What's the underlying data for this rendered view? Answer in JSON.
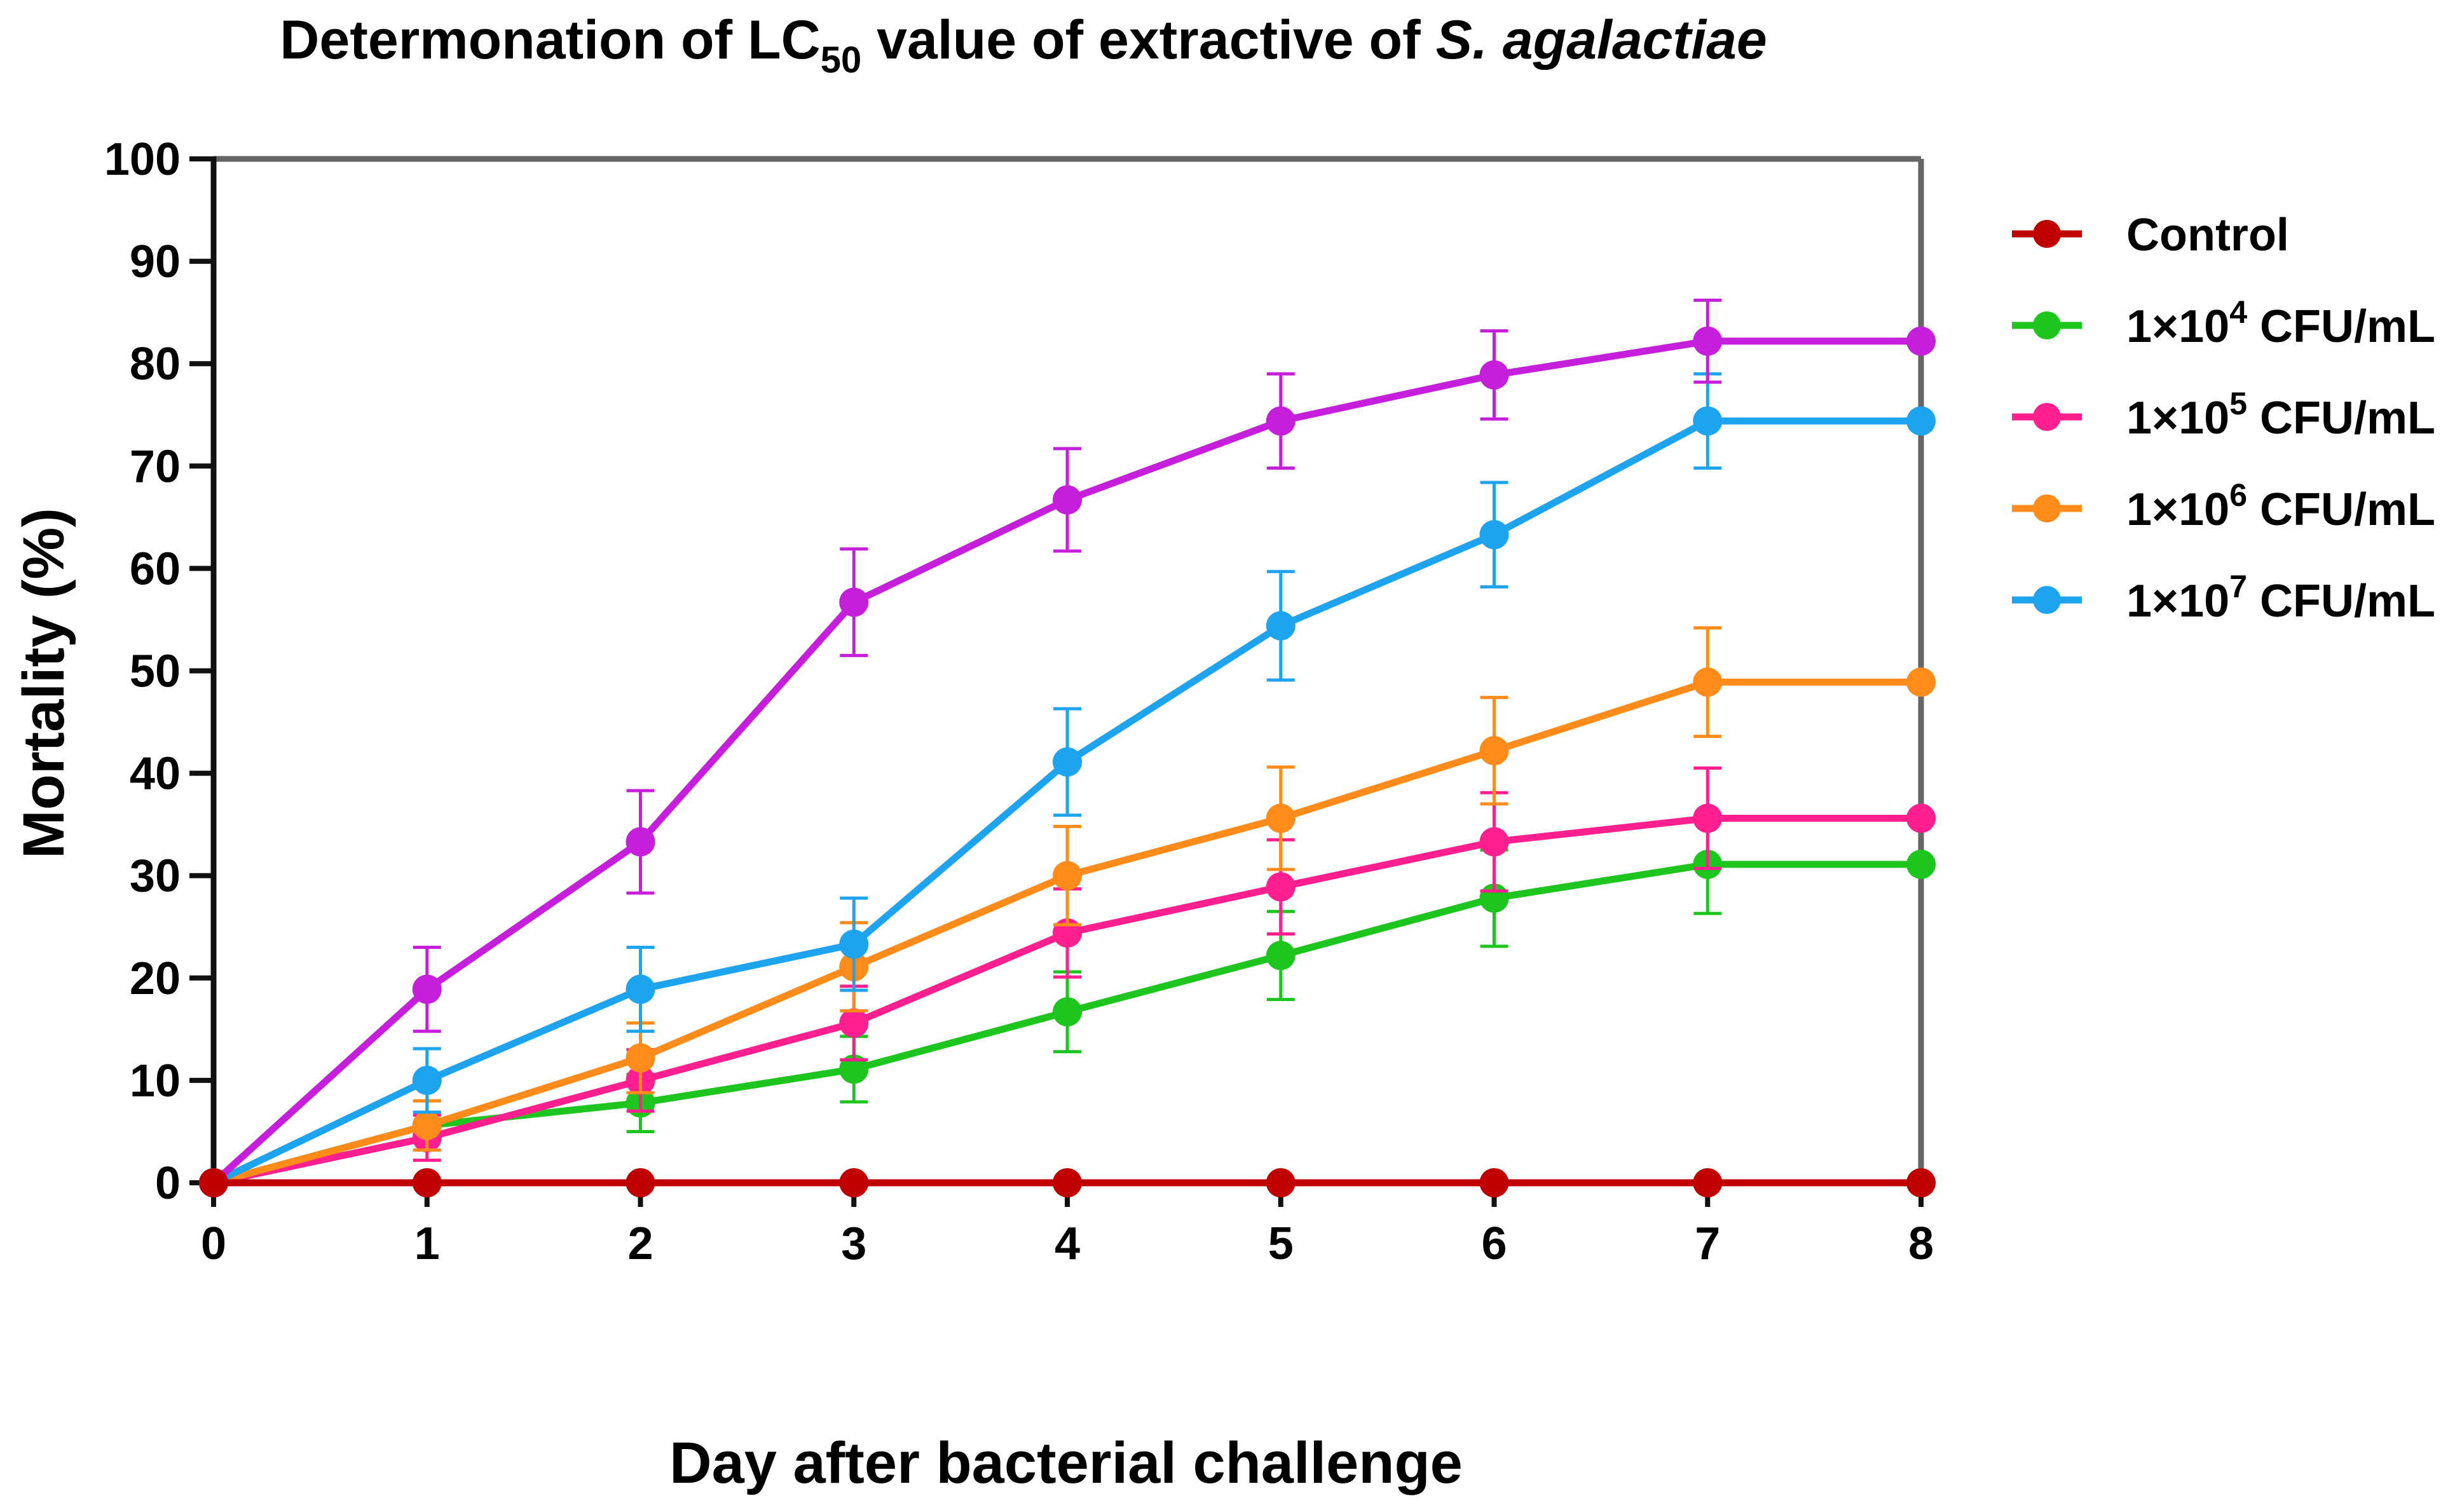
{
  "chart_data": {
    "type": "line",
    "title": {
      "prefix": "Determonation of LC",
      "subscript": "50",
      "middle": " value of extractive of ",
      "italic": "S. agalactiae"
    },
    "xlabel": "Day after bacterial challenge",
    "ylabel": "Mortality (%)",
    "x": [
      0,
      1,
      2,
      3,
      4,
      5,
      6,
      7,
      8
    ],
    "xlim": [
      0,
      8
    ],
    "ylim": [
      0,
      100
    ],
    "xticks": [
      "0",
      "1",
      "2",
      "3",
      "4",
      "5",
      "6",
      "7",
      "8"
    ],
    "yticks": [
      "0",
      "10",
      "20",
      "30",
      "40",
      "50",
      "60",
      "70",
      "80",
      "90",
      "100"
    ],
    "legend_position": "right",
    "series": [
      {
        "name": "Control",
        "legend": {
          "base": "Control"
        },
        "color": "#c00000",
        "values": [
          0,
          0,
          0,
          0,
          0,
          0,
          0,
          0,
          0
        ],
        "errors": [
          0,
          0,
          0,
          0,
          0,
          0,
          0,
          0,
          0
        ]
      },
      {
        "name": "1×10⁴ CFU/mL",
        "legend": {
          "base": "1×10",
          "sup": "4",
          "unit": " CFU/mL"
        },
        "color": "#1ec51e",
        "values": [
          0,
          5.6,
          7.8,
          11.1,
          16.7,
          22.2,
          27.8,
          31.1,
          31.1
        ],
        "errors": [
          0,
          2.4,
          2.8,
          3.2,
          3.9,
          4.3,
          4.7,
          4.8,
          0
        ]
      },
      {
        "name": "1×10⁵ CFU/mL",
        "legend": {
          "base": "1×10",
          "sup": "5",
          "unit": " CFU/mL"
        },
        "color": "#ff1f8e",
        "values": [
          0,
          4.4,
          10.0,
          15.6,
          24.4,
          28.9,
          33.3,
          35.6,
          35.6
        ],
        "errors": [
          0,
          2.2,
          3.0,
          3.6,
          4.3,
          4.6,
          4.8,
          4.9,
          0
        ]
      },
      {
        "name": "1×10⁶ CFU/mL",
        "legend": {
          "base": "1×10",
          "sup": "6",
          "unit": " CFU/mL"
        },
        "color": "#ff8c1a",
        "values": [
          0,
          5.6,
          12.2,
          21.1,
          30.0,
          35.6,
          42.2,
          48.9,
          48.9
        ],
        "errors": [
          0,
          2.4,
          3.4,
          4.3,
          4.8,
          5.0,
          5.2,
          5.3,
          0
        ]
      },
      {
        "name": "1×10⁷ CFU/mL",
        "legend": {
          "base": "1×10",
          "sup": "7",
          "unit": " CFU/mL"
        },
        "color": "#1ea3ef",
        "values": [
          0,
          10.0,
          18.9,
          23.3,
          41.1,
          54.4,
          63.3,
          74.4,
          74.4
        ],
        "errors": [
          0,
          3.1,
          4.1,
          4.5,
          5.2,
          5.3,
          5.1,
          4.6,
          0
        ]
      },
      {
        "name": "unlabeled",
        "legend": null,
        "color": "#c51fdc",
        "values": [
          0,
          18.9,
          33.3,
          56.7,
          66.7,
          74.4,
          78.9,
          82.2,
          82.2
        ],
        "errors": [
          0,
          4.1,
          5.0,
          5.2,
          5.0,
          4.6,
          4.3,
          4.0,
          0
        ]
      }
    ]
  }
}
